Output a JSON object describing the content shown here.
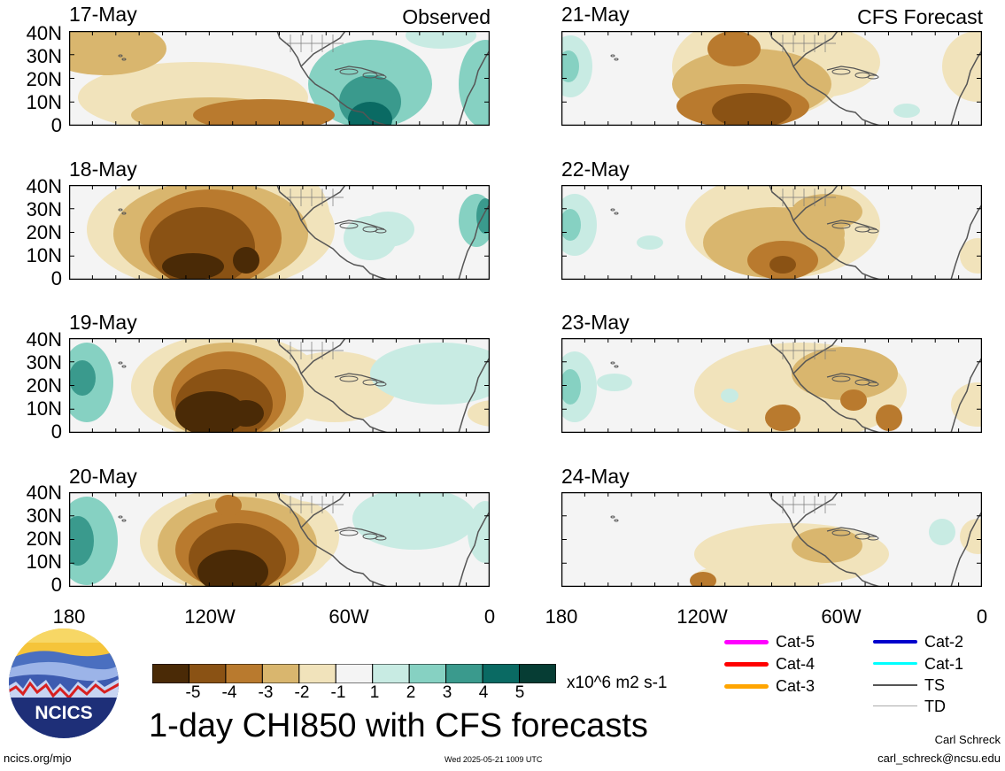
{
  "header": {
    "observed": "Observed",
    "forecast": "CFS Forecast"
  },
  "panels_left": [
    {
      "date": "17-May"
    },
    {
      "date": "18-May"
    },
    {
      "date": "19-May"
    },
    {
      "date": "20-May"
    }
  ],
  "panels_right": [
    {
      "date": "21-May"
    },
    {
      "date": "22-May"
    },
    {
      "date": "23-May"
    },
    {
      "date": "24-May"
    }
  ],
  "lat_labels": [
    "40N",
    "30N",
    "20N",
    "10N",
    "0"
  ],
  "lon_labels": [
    "180",
    "120W",
    "60W",
    "0"
  ],
  "colorbar": {
    "ticks": [
      "-5",
      "-4",
      "-3",
      "-2",
      "-1",
      "1",
      "2",
      "3",
      "4",
      "5"
    ],
    "units": "x10^6 m2 s-1",
    "colors": [
      "#4a2a06",
      "#8a5214",
      "#b97a2e",
      "#d9b66e",
      "#f1e3bb",
      "#f4f4f4",
      "#c8ebe3",
      "#86d1c2",
      "#3a9a8d",
      "#0a6a63",
      "#063d34"
    ]
  },
  "legend": [
    {
      "label": "Cat-5",
      "color": "#ff00ff"
    },
    {
      "label": "Cat-4",
      "color": "#ff0000"
    },
    {
      "label": "Cat-3",
      "color": "#ffa500"
    },
    {
      "label": "Cat-2",
      "color": "#0000cc"
    },
    {
      "label": "Cat-1",
      "color": "#00ffff"
    },
    {
      "label": "TS",
      "color": "#555555"
    },
    {
      "label": "TD",
      "color": "#aaaaaa"
    }
  ],
  "title": "1-day CHI850 with CFS forecasts",
  "logo_text": "NCICS",
  "footer": {
    "url": "ncics.org/mjo",
    "timestamp": "Wed 2025-05-21 1009 UTC",
    "author": "Carl Schreck",
    "email": "carl_schreck@ncsu.edu"
  }
}
